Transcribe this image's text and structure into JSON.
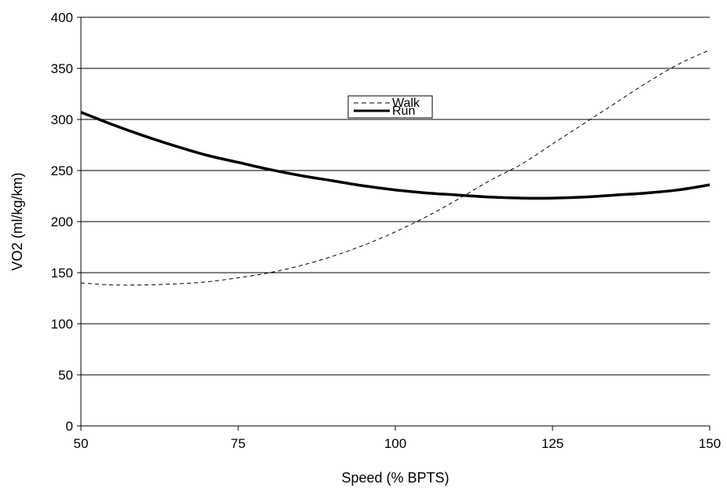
{
  "chart_data": {
    "type": "line",
    "title": "",
    "xlabel": "Speed (% BPTS)",
    "ylabel": "VO2 (ml/kg/km)",
    "xlim": [
      50,
      150
    ],
    "ylim": [
      0,
      400
    ],
    "x_ticks": [
      50,
      75,
      100,
      125,
      150
    ],
    "y_ticks": [
      0,
      50,
      100,
      150,
      200,
      250,
      300,
      350,
      400
    ],
    "x_tick_labels": [
      "50",
      "75",
      "100",
      "125",
      "150"
    ],
    "y_tick_labels": [
      "0",
      "50",
      "100",
      "150",
      "200",
      "250",
      "300",
      "350",
      "400"
    ],
    "grid": "horizontal",
    "legend_position": "top-center",
    "x": [
      50,
      55,
      60,
      65,
      70,
      75,
      80,
      85,
      90,
      95,
      100,
      105,
      110,
      115,
      120,
      125,
      130,
      135,
      140,
      145,
      150
    ],
    "series": [
      {
        "name": "Walk",
        "style": "dashed",
        "color": "#000000",
        "values": [
          140,
          138,
          138,
          139,
          141,
          145,
          150,
          157,
          166,
          177,
          190,
          205,
          222,
          240,
          256,
          276,
          296,
          316,
          336,
          354,
          368
        ]
      },
      {
        "name": "Run",
        "style": "solid-thick",
        "color": "#000000",
        "values": [
          307,
          295,
          284,
          274,
          265,
          258,
          251,
          245,
          240,
          235,
          231,
          228,
          226,
          224,
          223,
          223,
          224,
          226,
          228,
          231,
          236
        ]
      }
    ]
  }
}
